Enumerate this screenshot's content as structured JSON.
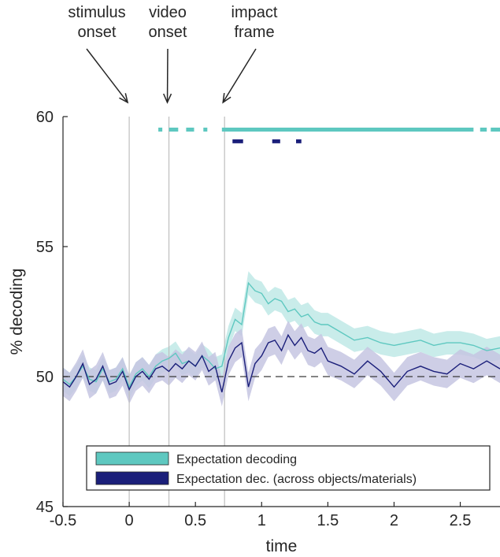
{
  "chart_data": {
    "type": "line",
    "title": "",
    "xlabel": "time",
    "ylabel": "% decoding",
    "xlim": [
      -0.5,
      2.8
    ],
    "ylim": [
      45,
      60
    ],
    "x_ticks": [
      -0.5,
      0,
      0.5,
      1,
      1.5,
      2,
      2.5
    ],
    "x_tick_labels": [
      "-0.5",
      "0",
      "0.5",
      "1",
      "1.5",
      "2",
      "2.5"
    ],
    "y_ticks": [
      45,
      50,
      55,
      60
    ],
    "y_tick_labels": [
      "45",
      "50",
      "55",
      "60"
    ],
    "grid": false,
    "legend": {
      "placement": "bottom-center"
    },
    "chance_level": 50,
    "event_lines": [
      {
        "x": 0,
        "label_lines": [
          "stimulus",
          "onset"
        ]
      },
      {
        "x": 0.3,
        "label_lines": [
          "video",
          "onset"
        ]
      },
      {
        "x": 0.72,
        "label_lines": [
          "impact",
          "frame"
        ]
      }
    ],
    "series": [
      {
        "name": "Expectation decoding",
        "color": "#5ec8c0",
        "band_color": "#bfe9e6",
        "x": [
          -0.5,
          -0.45,
          -0.4,
          -0.35,
          -0.3,
          -0.25,
          -0.2,
          -0.15,
          -0.1,
          -0.05,
          0,
          0.05,
          0.1,
          0.15,
          0.2,
          0.25,
          0.3,
          0.35,
          0.4,
          0.45,
          0.5,
          0.55,
          0.6,
          0.65,
          0.7,
          0.75,
          0.8,
          0.85,
          0.9,
          0.95,
          1.0,
          1.05,
          1.1,
          1.15,
          1.2,
          1.25,
          1.3,
          1.35,
          1.4,
          1.45,
          1.5,
          1.6,
          1.7,
          1.8,
          1.9,
          2.0,
          2.1,
          2.2,
          2.3,
          2.4,
          2.5,
          2.6,
          2.7,
          2.8
        ],
        "y": [
          49.9,
          49.7,
          50.0,
          50.4,
          49.9,
          49.8,
          50.3,
          49.8,
          49.9,
          50.3,
          49.6,
          50.1,
          50.3,
          50.0,
          50.4,
          50.6,
          50.7,
          50.9,
          50.5,
          50.6,
          50.4,
          50.8,
          50.6,
          50.3,
          50.4,
          51.5,
          52.2,
          52.0,
          53.6,
          53.3,
          53.2,
          52.8,
          53.0,
          52.9,
          52.5,
          52.6,
          52.3,
          52.4,
          52.1,
          52.0,
          52.0,
          51.7,
          51.4,
          51.5,
          51.3,
          51.2,
          51.3,
          51.4,
          51.2,
          51.3,
          51.3,
          51.2,
          51.0,
          51.1
        ],
        "band": 0.45
      },
      {
        "name": "Expectation dec. (across objects/materials)",
        "color": "#1b1f7a",
        "band_color": "#c6c6e2",
        "x": [
          -0.5,
          -0.45,
          -0.4,
          -0.35,
          -0.3,
          -0.25,
          -0.2,
          -0.15,
          -0.1,
          -0.05,
          0,
          0.05,
          0.1,
          0.15,
          0.2,
          0.25,
          0.3,
          0.35,
          0.4,
          0.45,
          0.5,
          0.55,
          0.6,
          0.65,
          0.7,
          0.75,
          0.8,
          0.85,
          0.9,
          0.95,
          1.0,
          1.05,
          1.1,
          1.15,
          1.2,
          1.25,
          1.3,
          1.35,
          1.4,
          1.45,
          1.5,
          1.6,
          1.7,
          1.8,
          1.9,
          2.0,
          2.1,
          2.2,
          2.3,
          2.4,
          2.5,
          2.6,
          2.7,
          2.8
        ],
        "y": [
          49.8,
          49.6,
          50.0,
          50.5,
          49.7,
          49.9,
          50.4,
          49.7,
          49.8,
          50.2,
          49.5,
          50.0,
          50.2,
          49.9,
          50.3,
          50.4,
          50.2,
          50.5,
          50.3,
          50.6,
          50.4,
          50.8,
          50.2,
          50.4,
          49.4,
          50.6,
          51.1,
          51.3,
          49.6,
          50.5,
          50.8,
          51.3,
          51.4,
          51.0,
          51.6,
          51.2,
          51.5,
          51.0,
          50.9,
          51.1,
          50.6,
          50.4,
          50.1,
          50.6,
          50.2,
          49.6,
          50.2,
          50.4,
          50.2,
          50.1,
          50.5,
          50.3,
          50.6,
          50.3
        ],
        "band": 0.55
      }
    ],
    "significance_bars": [
      {
        "series": "Expectation decoding",
        "y": 59.5,
        "color": "#5ec8c0",
        "segments": [
          [
            0.22,
            0.25
          ],
          [
            0.3,
            0.37
          ],
          [
            0.43,
            0.49
          ],
          [
            0.56,
            0.59
          ],
          [
            0.7,
            2.6
          ],
          [
            2.65,
            2.7
          ],
          [
            2.73,
            2.8
          ]
        ]
      },
      {
        "series": "Expectation dec. (across objects/materials)",
        "y": 59.05,
        "color": "#1b1f7a",
        "segments": [
          [
            0.78,
            0.86
          ],
          [
            1.08,
            1.14
          ],
          [
            1.26,
            1.3
          ]
        ]
      }
    ]
  }
}
